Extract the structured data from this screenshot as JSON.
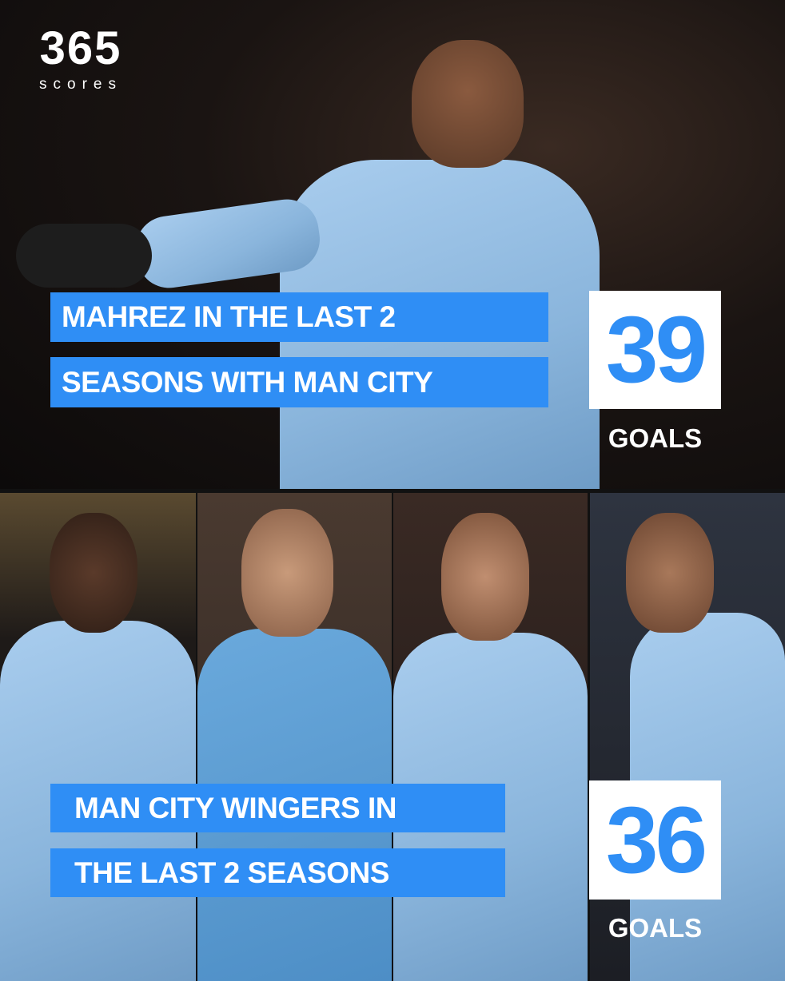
{
  "brand": {
    "logo_number": "365",
    "logo_word": "scores"
  },
  "colors": {
    "accent": "#2f8ef5",
    "label_text": "#ffffff",
    "number_box": "#ffffff"
  },
  "top_stat": {
    "lines": [
      "MAHREZ IN THE LAST 2",
      "SEASONS WITH MAN CITY"
    ],
    "value": "39",
    "unit": "GOALS"
  },
  "bottom_stat": {
    "lines": [
      "MAN CITY WINGERS IN",
      "THE LAST 2 SEASONS"
    ],
    "value": "36",
    "unit": "GOALS"
  }
}
